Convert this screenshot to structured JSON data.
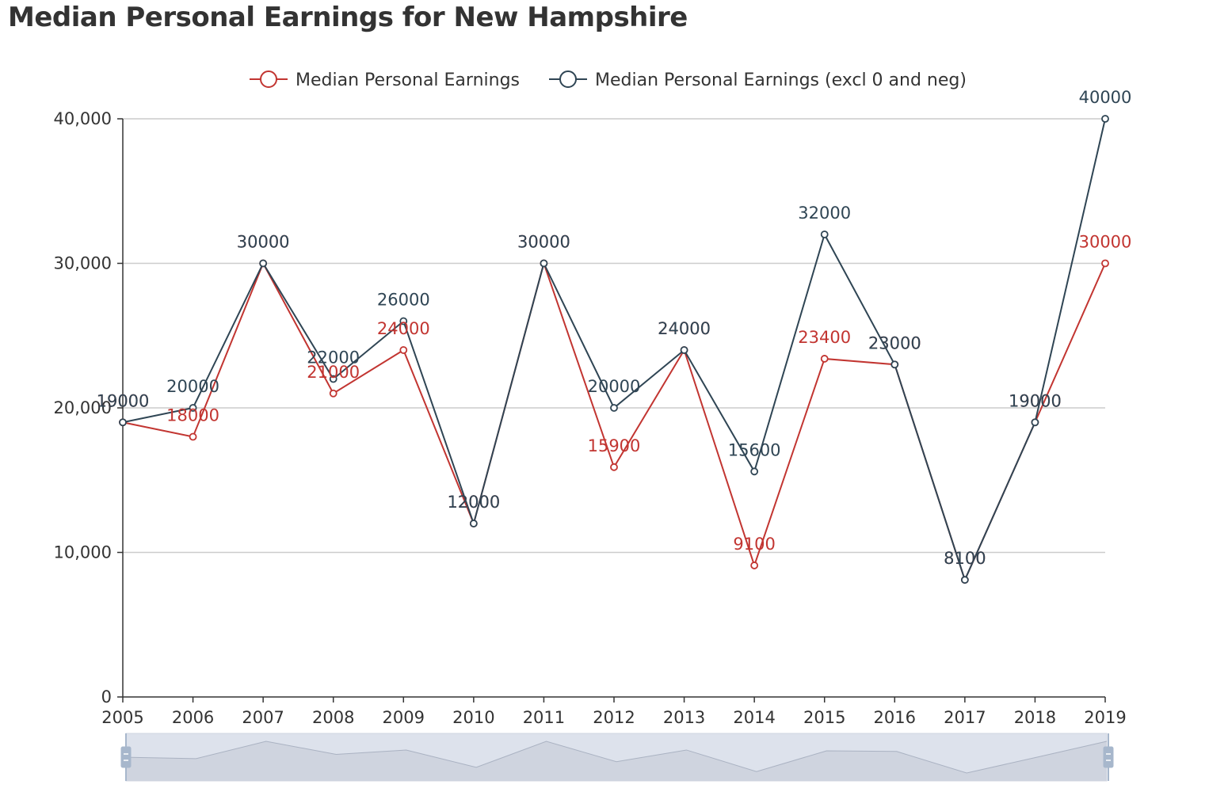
{
  "title": "Median Personal Earnings for New Hampshire",
  "chart_data": {
    "type": "line",
    "title": "Median Personal Earnings for New Hampshire",
    "xlabel": "",
    "ylabel": "",
    "categories": [
      "2005",
      "2006",
      "2007",
      "2008",
      "2009",
      "2010",
      "2011",
      "2012",
      "2013",
      "2014",
      "2015",
      "2016",
      "2017",
      "2018",
      "2019"
    ],
    "ylim": [
      0,
      40000
    ],
    "yticks": [
      0,
      10000,
      20000,
      30000,
      40000
    ],
    "ytick_labels": [
      "0",
      "10,000",
      "20,000",
      "30,000",
      "40,000"
    ],
    "grid": true,
    "legend_position": "top-center",
    "series": [
      {
        "name": "Median Personal Earnings",
        "color": "#c23531",
        "values": [
          19000,
          18000,
          30000,
          21000,
          24000,
          12000,
          30000,
          15900,
          24000,
          9100,
          23400,
          23000,
          8100,
          19000,
          30000
        ]
      },
      {
        "name": "Median Personal Earnings (excl 0 and neg)",
        "color": "#2f4554",
        "values": [
          19000,
          20000,
          30000,
          22000,
          26000,
          12000,
          30000,
          20000,
          24000,
          15600,
          32000,
          23000,
          8100,
          19000,
          40000
        ]
      }
    ],
    "data_zoom": {
      "visible": true,
      "range_percent": [
        0,
        100
      ]
    }
  }
}
